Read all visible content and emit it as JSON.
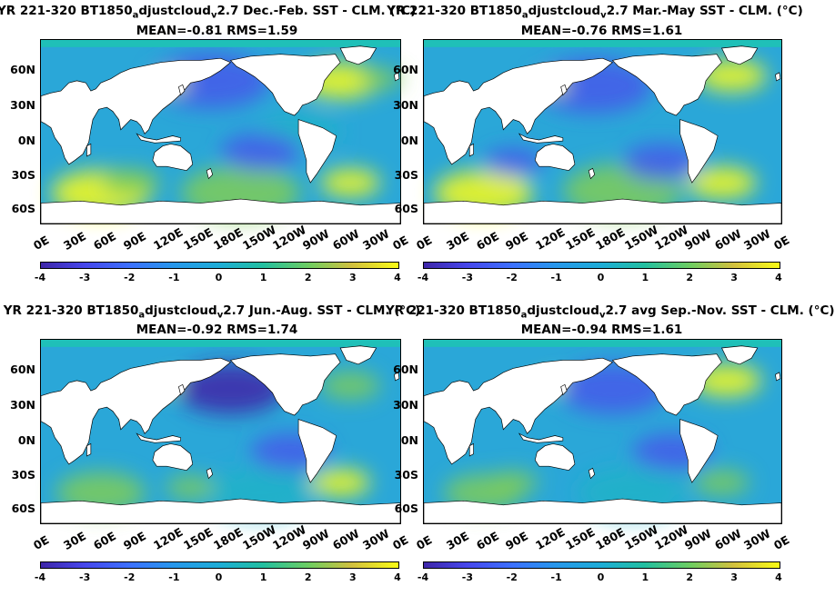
{
  "panels": [
    {
      "title_pre": "YR 221-320 BT1850",
      "title_sub1": "a",
      "title_mid": "djustcloud",
      "title_sub2": "v",
      "title_post": "2.7  Dec.-Feb. SST - CLM. (°C)",
      "stats": "MEAN=-0.81   RMS=1.59"
    },
    {
      "title_pre": "YR 221-320 BT1850",
      "title_sub1": "a",
      "title_mid": "djustcloud",
      "title_sub2": "v",
      "title_post": "2.7 Mar.-May SST - CLM. (°C)",
      "stats": "MEAN=-0.76   RMS=1.61"
    },
    {
      "title_pre": "YR 221-320 BT1850",
      "title_sub1": "a",
      "title_mid": "djustcloud",
      "title_sub2": "v",
      "title_post": "2.7 Jun.-Aug. SST - CLM. (°C)",
      "stats": "MEAN=-0.92   RMS=1.74"
    },
    {
      "title_pre": "YR 221-320 BT1850",
      "title_sub1": "a",
      "title_mid": "djustcloud",
      "title_sub2": "v",
      "title_post": "2.7 avg Sep.-Nov. SST - CLM. (°C)",
      "stats": "MEAN=-0.94   RMS=1.61"
    }
  ],
  "axes": {
    "lat_ticks": [
      "60N",
      "30N",
      "0N",
      "30S",
      "60S"
    ],
    "lon_ticks": [
      "0E",
      "30E",
      "60E",
      "90E",
      "120E",
      "150E",
      "180E",
      "150W",
      "120W",
      "90W",
      "60W",
      "30W",
      "0E"
    ],
    "colorbar_ticks": [
      "-4",
      "-3",
      "-2",
      "-1",
      "0",
      "1",
      "2",
      "3",
      "4"
    ]
  },
  "colors": {
    "ocean_base": "#2aa7d8",
    "cold": "#3e26a8",
    "cool": "#4759ea",
    "neutral": "#1fb3c8",
    "warm": "#7fcd58",
    "hot": "#f9fb15",
    "sea_ice": "#1fc0b8",
    "land": "#ffffff"
  }
}
